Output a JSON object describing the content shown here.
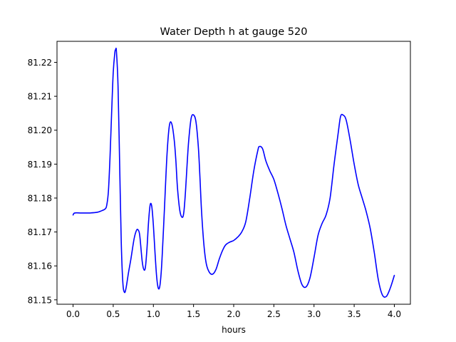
{
  "chart_data": {
    "type": "line",
    "title": "Water Depth h at gauge 520",
    "xlabel": "hours",
    "ylabel": "",
    "xlim": [
      -0.2,
      4.2
    ],
    "ylim": [
      81.1487,
      81.2262
    ],
    "xticks": [
      0.0,
      0.5,
      1.0,
      1.5,
      2.0,
      2.5,
      3.0,
      3.5,
      4.0
    ],
    "xtick_labels": [
      "0.0",
      "0.5",
      "1.0",
      "1.5",
      "2.0",
      "2.5",
      "3.0",
      "3.5",
      "4.0"
    ],
    "yticks": [
      81.15,
      81.16,
      81.17,
      81.18,
      81.19,
      81.2,
      81.21,
      81.22
    ],
    "ytick_labels": [
      "81.15",
      "81.16",
      "81.17",
      "81.18",
      "81.19",
      "81.20",
      "81.21",
      "81.22"
    ],
    "grid": false,
    "series": [
      {
        "color": "#0000ff",
        "x": [
          0.0,
          0.02,
          0.1,
          0.2,
          0.3,
          0.35,
          0.4,
          0.42,
          0.44,
          0.46,
          0.48,
          0.5,
          0.52,
          0.53,
          0.54,
          0.56,
          0.58,
          0.6,
          0.62,
          0.64,
          0.66,
          0.69,
          0.72,
          0.76,
          0.79,
          0.81,
          0.83,
          0.86,
          0.88,
          0.9,
          0.92,
          0.94,
          0.96,
          0.98,
          1.0,
          1.02,
          1.04,
          1.06,
          1.08,
          1.1,
          1.12,
          1.14,
          1.17,
          1.2,
          1.23,
          1.26,
          1.28,
          1.3,
          1.33,
          1.36,
          1.38,
          1.4,
          1.42,
          1.44,
          1.47,
          1.5,
          1.53,
          1.56,
          1.58,
          1.6,
          1.63,
          1.66,
          1.7,
          1.74,
          1.78,
          1.82,
          1.86,
          1.9,
          1.95,
          2.0,
          2.05,
          2.1,
          2.15,
          2.2,
          2.25,
          2.3,
          2.32,
          2.36,
          2.4,
          2.45,
          2.5,
          2.55,
          2.6,
          2.65,
          2.7,
          2.75,
          2.8,
          2.85,
          2.9,
          2.95,
          3.0,
          3.05,
          3.1,
          3.15,
          3.2,
          3.25,
          3.3,
          3.33,
          3.36,
          3.4,
          3.45,
          3.5,
          3.55,
          3.6,
          3.65,
          3.7,
          3.75,
          3.8,
          3.85,
          3.9,
          3.95,
          4.0
        ],
        "y": [
          81.175,
          81.1756,
          81.1756,
          81.1756,
          81.1758,
          81.1762,
          81.1768,
          81.178,
          81.182,
          81.192,
          81.205,
          81.217,
          81.2228,
          81.2237,
          81.2232,
          81.213,
          81.19,
          81.167,
          81.155,
          81.1522,
          81.1535,
          81.158,
          81.162,
          81.168,
          81.1705,
          81.1706,
          81.169,
          81.1615,
          81.159,
          81.1595,
          81.165,
          81.173,
          81.178,
          81.1775,
          81.172,
          81.164,
          81.157,
          81.1535,
          81.154,
          81.159,
          81.168,
          81.178,
          81.193,
          81.2015,
          81.2018,
          81.197,
          81.191,
          81.183,
          81.1762,
          81.1743,
          81.176,
          81.182,
          81.19,
          81.197,
          81.2035,
          81.2045,
          81.2025,
          81.195,
          81.186,
          81.176,
          81.166,
          81.1605,
          81.158,
          81.1576,
          81.159,
          81.162,
          81.1645,
          81.1662,
          81.167,
          81.1675,
          81.1685,
          81.17,
          81.173,
          81.18,
          81.188,
          81.194,
          81.1952,
          81.1945,
          81.191,
          81.188,
          81.1855,
          81.1815,
          81.177,
          81.172,
          81.168,
          81.164,
          81.1585,
          81.1545,
          81.1538,
          81.1565,
          81.1625,
          81.169,
          81.1725,
          81.175,
          81.18,
          81.19,
          81.199,
          81.204,
          81.2045,
          81.203,
          81.197,
          81.19,
          81.184,
          81.18,
          81.176,
          81.171,
          81.164,
          81.156,
          81.1515,
          81.151,
          81.1535,
          81.1572
        ]
      }
    ]
  }
}
